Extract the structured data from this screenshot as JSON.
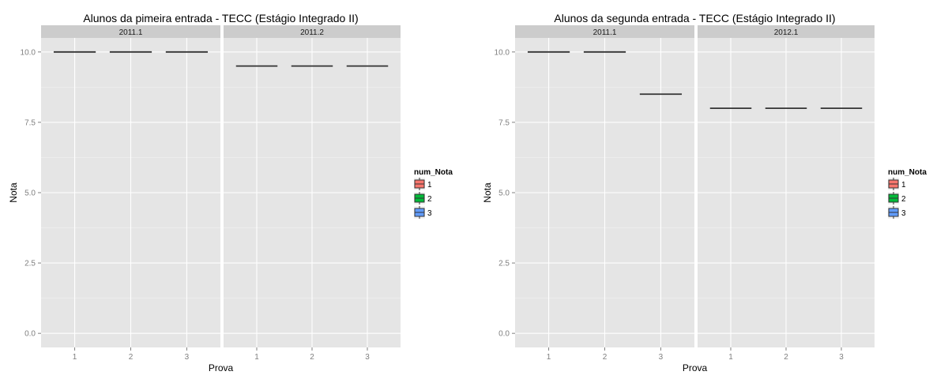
{
  "chart_data": [
    {
      "type": "boxplot",
      "title": "Alunos da pimeira entrada -  TECC (Estágio Integrado II)",
      "xlabel": "Prova",
      "ylabel": "Nota",
      "ylim": [
        -0.5,
        10.5
      ],
      "yticks": [
        "0.0",
        "2.5",
        "5.0",
        "7.5",
        "10.0"
      ],
      "ytick_values": [
        0,
        2.5,
        5,
        7.5,
        10
      ],
      "categories": [
        "1",
        "2",
        "3"
      ],
      "grid": true,
      "facets": [
        {
          "label": "2011.1",
          "values": [
            10,
            10,
            10
          ]
        },
        {
          "label": "2011.2",
          "values": [
            9.5,
            9.5,
            9.5
          ]
        }
      ],
      "legend": {
        "title": "num_Nota",
        "placement": "right",
        "entries": [
          {
            "label": "1",
            "color": "#f8766d"
          },
          {
            "label": "2",
            "color": "#00ba38"
          },
          {
            "label": "3",
            "color": "#619cff"
          }
        ]
      }
    },
    {
      "type": "boxplot",
      "title": "Alunos da segunda entrada -  TECC (Estágio Integrado II)",
      "xlabel": "Prova",
      "ylabel": "Nota",
      "ylim": [
        -0.5,
        10.5
      ],
      "yticks": [
        "0.0",
        "2.5",
        "5.0",
        "7.5",
        "10.0"
      ],
      "ytick_values": [
        0,
        2.5,
        5,
        7.5,
        10
      ],
      "categories": [
        "1",
        "2",
        "3"
      ],
      "grid": true,
      "facets": [
        {
          "label": "2011.1",
          "values": [
            10,
            10,
            8.5
          ]
        },
        {
          "label": "2012.1",
          "values": [
            8,
            8,
            8
          ]
        }
      ],
      "legend": {
        "title": "num_Nota",
        "placement": "right",
        "entries": [
          {
            "label": "1",
            "color": "#f8766d"
          },
          {
            "label": "2",
            "color": "#00ba38"
          },
          {
            "label": "3",
            "color": "#619cff"
          }
        ]
      }
    }
  ]
}
